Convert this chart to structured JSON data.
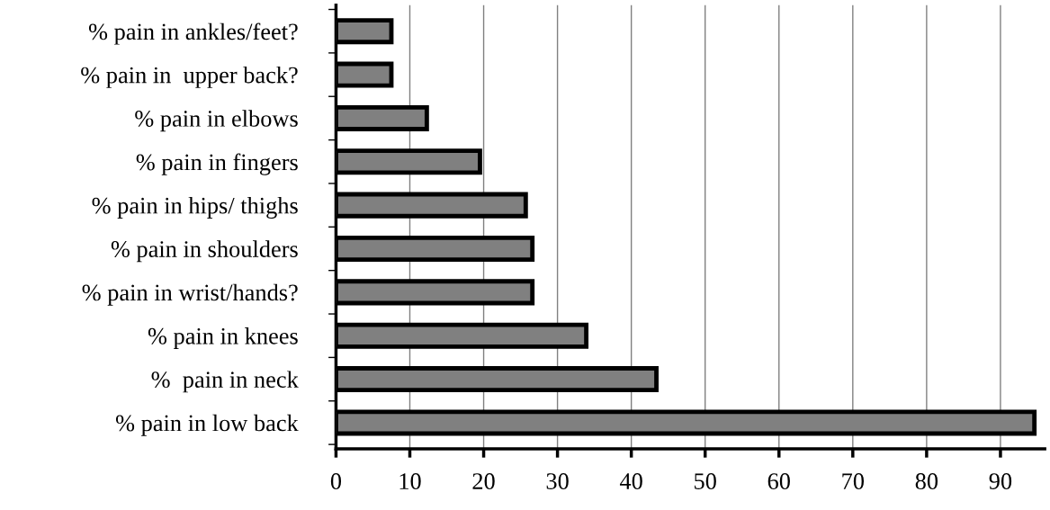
{
  "chart_data": {
    "type": "bar",
    "orientation": "horizontal",
    "categories": [
      "% pain in ankles/feet?",
      "% pain in  upper back?",
      "% pain in elbows",
      "% pain in fingers",
      "% pain in hips/ thighs",
      "% pain in shoulders",
      "% pain in wrist/hands?",
      "% pain in knees",
      "%  pain in neck",
      "% pain in low back"
    ],
    "values": [
      7.5,
      7.5,
      12.3,
      19.5,
      25.7,
      26.6,
      26.6,
      33.9,
      43.4,
      94.6
    ],
    "color": "#808080",
    "xlim": [
      0,
      96
    ],
    "xticks": [
      0,
      10,
      20,
      30,
      40,
      50,
      60,
      70,
      80,
      90
    ],
    "grid": "x",
    "legend": false
  }
}
